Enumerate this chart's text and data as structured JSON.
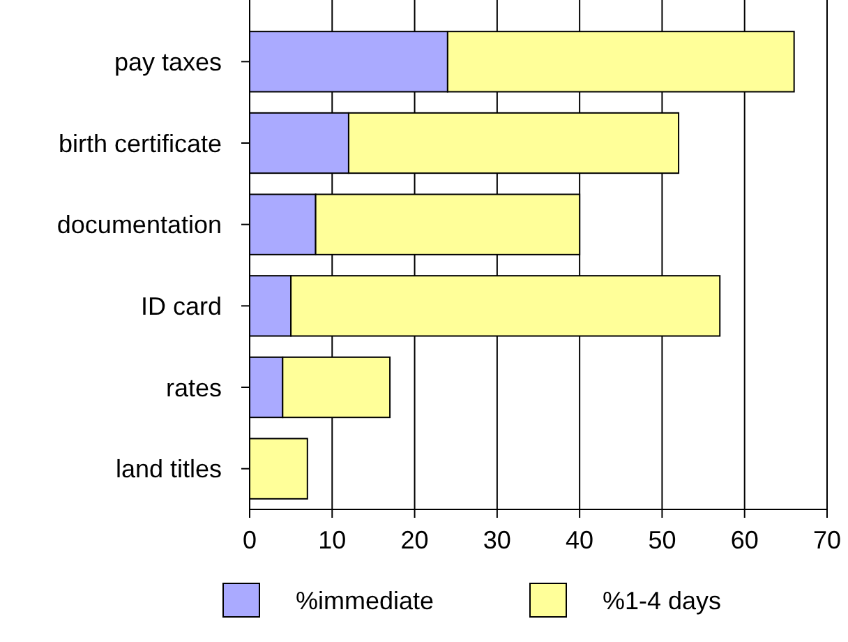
{
  "chart_data": {
    "type": "bar",
    "orientation": "horizontal",
    "stacked": true,
    "categories": [
      "pay taxes",
      "birth certificate",
      "documentation",
      "ID card",
      "rates",
      "land titles"
    ],
    "series": [
      {
        "name": "%immediate",
        "color": "#aaaaff",
        "values": [
          24,
          12,
          8,
          5,
          4,
          0
        ]
      },
      {
        "name": "%1-4 days",
        "color": "#ffff99",
        "values": [
          42,
          40,
          32,
          52,
          13,
          7
        ]
      }
    ],
    "xlim": [
      0,
      70
    ],
    "xticks": [
      0,
      10,
      20,
      30,
      40,
      50,
      60,
      70
    ],
    "grid": "x",
    "legend": "bottom"
  }
}
